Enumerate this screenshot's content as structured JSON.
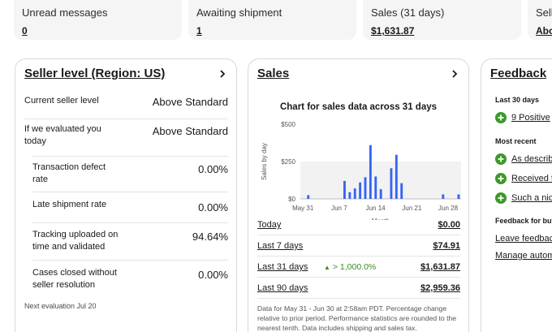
{
  "stats": [
    {
      "label": "Unread messages",
      "value": "0"
    },
    {
      "label": "Awaiting shipment",
      "value": "1"
    },
    {
      "label": "Sales (31 days)",
      "value": "$1,631.87"
    },
    {
      "label": "Sell",
      "value": "Abo"
    }
  ],
  "seller_level": {
    "title": "Seller level (Region: US)",
    "rows": [
      {
        "label": "Current seller level",
        "value": "Above Standard"
      },
      {
        "label": "If we evaluated you today",
        "value": "Above Standard"
      },
      {
        "label": "Transaction defect rate",
        "value": "0.00%"
      },
      {
        "label": "Late shipment rate",
        "value": "0.00%"
      },
      {
        "label": "Tracking uploaded on time and validated",
        "value": "94.64%"
      },
      {
        "label": "Cases closed without seller resolution",
        "value": "0.00%"
      }
    ],
    "next_eval": "Next evaluation Jul 20"
  },
  "sales": {
    "title": "Sales",
    "chart_title": "Chart for sales data across 31 days",
    "rows": [
      {
        "label": "Today",
        "value": "$0.00",
        "change": ""
      },
      {
        "label": "Last 7 days",
        "value": "$74.91",
        "change": ""
      },
      {
        "label": "Last 31 days",
        "value": "$1,631.87",
        "change": "> 1,000.0%"
      },
      {
        "label": "Last 90 days",
        "value": "$2,959.36",
        "change": ""
      }
    ],
    "footnote": "Data for May 31 - Jun 30 at 2:58am PDT. Percentage change relative to prior period. Performance statistics are rounded to the nearest tenth. Data includes shipping and sales tax."
  },
  "chart_data": {
    "type": "bar",
    "title": "Chart for sales data across 31 days",
    "xlabel": "Month",
    "ylabel": "Sales by day",
    "ylim": [
      0,
      500
    ],
    "yticks": [
      "$0",
      "$250",
      "$500"
    ],
    "xticks": [
      {
        "label": "May 31",
        "day": 0
      },
      {
        "label": "Jun 7",
        "day": 7
      },
      {
        "label": "Jun 14",
        "day": 14
      },
      {
        "label": "Jun 21",
        "day": 21
      },
      {
        "label": "Jun 28",
        "day": 28
      }
    ],
    "categories": [
      "May 31",
      "Jun 1",
      "Jun 2",
      "Jun 3",
      "Jun 4",
      "Jun 5",
      "Jun 6",
      "Jun 7",
      "Jun 8",
      "Jun 9",
      "Jun 10",
      "Jun 11",
      "Jun 12",
      "Jun 13",
      "Jun 14",
      "Jun 15",
      "Jun 16",
      "Jun 17",
      "Jun 18",
      "Jun 19",
      "Jun 20",
      "Jun 21",
      "Jun 22",
      "Jun 23",
      "Jun 24",
      "Jun 25",
      "Jun 26",
      "Jun 27",
      "Jun 28",
      "Jun 29",
      "Jun 30"
    ],
    "values": [
      0,
      25,
      0,
      0,
      0,
      0,
      0,
      0,
      120,
      45,
      70,
      110,
      145,
      360,
      150,
      65,
      0,
      205,
      295,
      105,
      0,
      0,
      0,
      0,
      0,
      0,
      0,
      30,
      0,
      0,
      30
    ],
    "bar_color": "#3665f3",
    "plot_bg": "#f2f2f2"
  },
  "feedback": {
    "title": "Feedback",
    "last30": "Last 30 days",
    "positive": "9 Positive",
    "most_recent": "Most recent",
    "items": [
      "As describ",
      "Received f",
      "Such a nic"
    ],
    "for_buyers": "Feedback for buy",
    "links": [
      "Leave feedbac",
      "Manage autom"
    ],
    "positive_color": "#3c9a29"
  }
}
